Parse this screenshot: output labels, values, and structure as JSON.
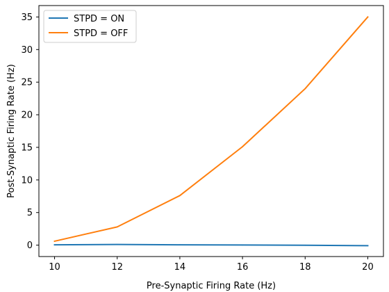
{
  "chart_data": {
    "type": "line",
    "title": "",
    "xlabel": "Pre-Synaptic Firing Rate (Hz)",
    "ylabel": "Post-Synaptic Firing Rate (Hz)",
    "x": [
      10,
      12,
      14,
      16,
      18,
      20
    ],
    "xlim": [
      9.5,
      20.5
    ],
    "ylim": [
      -1.75,
      36.75
    ],
    "xticks": [
      10,
      12,
      14,
      16,
      18,
      20
    ],
    "yticks": [
      0,
      5,
      10,
      15,
      20,
      25,
      30,
      35
    ],
    "grid": false,
    "legend": {
      "position": "top-left"
    },
    "series": [
      {
        "name": "STPD = ON",
        "color": "#1f77b4",
        "values": [
          0.05,
          0.1,
          0.05,
          0.02,
          -0.02,
          -0.08
        ]
      },
      {
        "name": "STPD = OFF",
        "color": "#ff7f0e",
        "values": [
          0.6,
          2.8,
          7.6,
          15.1,
          24.0,
          35.0
        ]
      }
    ]
  }
}
